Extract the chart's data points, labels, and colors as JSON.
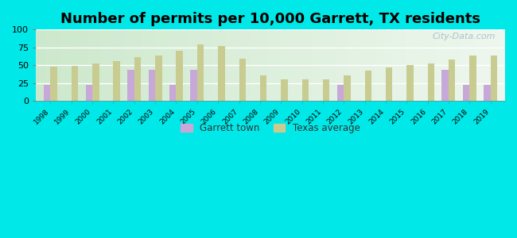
{
  "title": "Number of permits per 10,000 Garrett, TX residents",
  "years": [
    1998,
    1999,
    2000,
    2001,
    2002,
    2003,
    2004,
    2005,
    2006,
    2007,
    2008,
    2009,
    2010,
    2011,
    2012,
    2013,
    2014,
    2015,
    2016,
    2017,
    2018,
    2019
  ],
  "garrett_values": [
    22,
    0,
    22,
    0,
    44,
    44,
    22,
    44,
    0,
    0,
    0,
    0,
    0,
    0,
    22,
    0,
    0,
    0,
    0,
    44,
    22,
    22
  ],
  "texas_values": [
    48,
    49,
    52,
    56,
    61,
    63,
    70,
    79,
    77,
    59,
    36,
    30,
    30,
    30,
    36,
    42,
    47,
    50,
    52,
    58,
    63,
    63
  ],
  "garrett_color": "#c8a8d8",
  "texas_color": "#c8cc90",
  "background_outer": "#00e8e8",
  "background_inner_top": "#e8f5e8",
  "background_inner_bottom": "#d0edd8",
  "ylim": [
    0,
    100
  ],
  "yticks": [
    0,
    25,
    50,
    75,
    100
  ],
  "legend_garrett": "Garrett town",
  "legend_texas": "Texas average",
  "title_fontsize": 13,
  "watermark": "City-Data.com"
}
